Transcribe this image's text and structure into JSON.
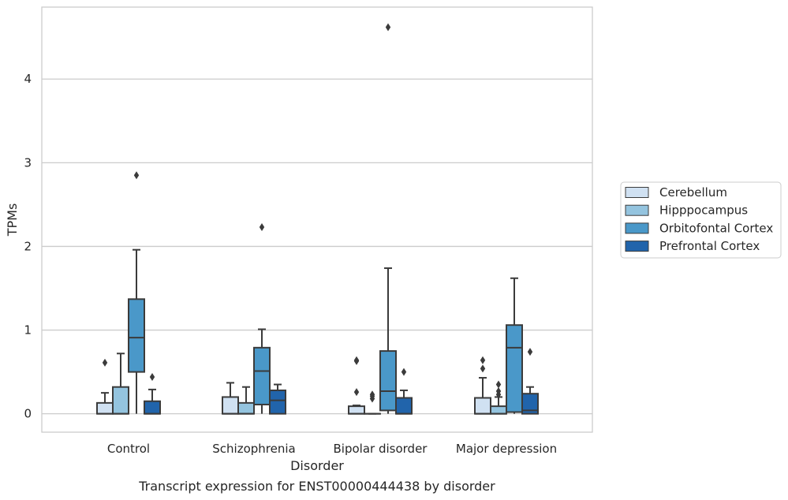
{
  "chart_data": {
    "type": "box",
    "caption": "Transcript expression for ENST00000444438 by disorder",
    "xlabel": "Disorder",
    "ylabel": "TPMs",
    "ylim": [
      -0.22,
      4.86
    ],
    "yticks": [
      0,
      1,
      2,
      3,
      4
    ],
    "grid": true,
    "legend_position": "right",
    "categories": [
      "Control",
      "Schizophrenia",
      "Bipolar disorder",
      "Major depression"
    ],
    "series": [
      {
        "name": "Cerebellum",
        "color": "#d0e1f2",
        "boxes": [
          {
            "whisker_low": 0,
            "q1": 0,
            "median": 0,
            "q3": 0.13,
            "whisker_high": 0.25,
            "outliers": [
              0.61
            ]
          },
          {
            "whisker_low": 0,
            "q1": 0,
            "median": 0,
            "q3": 0.2,
            "whisker_high": 0.37,
            "outliers": []
          },
          {
            "whisker_low": 0,
            "q1": 0,
            "median": 0,
            "q3": 0.09,
            "whisker_high": 0.1,
            "outliers": [
              0.26,
              0.63,
              0.64
            ]
          },
          {
            "whisker_low": 0,
            "q1": 0,
            "median": 0,
            "q3": 0.19,
            "whisker_high": 0.43,
            "outliers": [
              0.54,
              0.64
            ]
          }
        ]
      },
      {
        "name": "Hipppocampus",
        "color": "#94c4df",
        "boxes": [
          {
            "whisker_low": 0,
            "q1": 0,
            "median": 0,
            "q3": 0.32,
            "whisker_high": 0.72,
            "outliers": []
          },
          {
            "whisker_low": 0,
            "q1": 0,
            "median": 0,
            "q3": 0.13,
            "whisker_high": 0.32,
            "outliers": []
          },
          {
            "whisker_low": 0,
            "q1": 0,
            "median": 0,
            "q3": 0,
            "whisker_high": 0,
            "outliers": [
              0.18,
              0.21,
              0.23
            ]
          },
          {
            "whisker_low": 0,
            "q1": 0,
            "median": 0,
            "q3": 0.09,
            "whisker_high": 0.2,
            "outliers": [
              0.23,
              0.27,
              0.35
            ]
          }
        ]
      },
      {
        "name": "Orbitofontal Cortex",
        "color": "#4a98c9",
        "boxes": [
          {
            "whisker_low": 0,
            "q1": 0.5,
            "median": 0.91,
            "q3": 1.37,
            "whisker_high": 1.96,
            "outliers": [
              2.85
            ]
          },
          {
            "whisker_low": 0,
            "q1": 0.11,
            "median": 0.51,
            "q3": 0.79,
            "whisker_high": 1.01,
            "outliers": [
              2.23
            ]
          },
          {
            "whisker_low": 0,
            "q1": 0.04,
            "median": 0.27,
            "q3": 0.75,
            "whisker_high": 1.74,
            "outliers": [
              4.62
            ]
          },
          {
            "whisker_low": 0,
            "q1": 0.02,
            "median": 0.79,
            "q3": 1.06,
            "whisker_high": 1.62,
            "outliers": []
          }
        ]
      },
      {
        "name": "Prefrontal Cortex",
        "color": "#2164ab",
        "boxes": [
          {
            "whisker_low": 0,
            "q1": 0,
            "median": 0,
            "q3": 0.15,
            "whisker_high": 0.29,
            "outliers": [
              0.44
            ]
          },
          {
            "whisker_low": 0,
            "q1": 0,
            "median": 0.16,
            "q3": 0.28,
            "whisker_high": 0.35,
            "outliers": []
          },
          {
            "whisker_low": 0,
            "q1": 0,
            "median": 0,
            "q3": 0.19,
            "whisker_high": 0.28,
            "outliers": [
              0.5
            ]
          },
          {
            "whisker_low": 0,
            "q1": 0,
            "median": 0.04,
            "q3": 0.24,
            "whisker_high": 0.32,
            "outliers": [
              0.74
            ]
          }
        ]
      }
    ]
  }
}
